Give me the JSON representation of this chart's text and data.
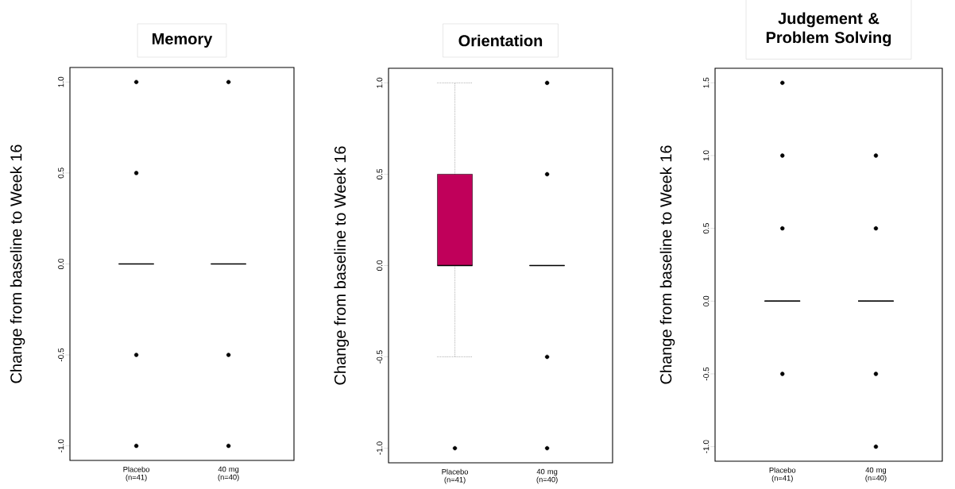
{
  "chart_data": [
    {
      "type": "box",
      "title": "Memory",
      "ylabel": "Change from baseline to Week 16",
      "categories": [
        "Placebo (n=41)",
        "40 mg (n=40)"
      ],
      "boxes": [
        {
          "low": 0,
          "q1": 0,
          "median": 0,
          "q3": 0,
          "high": 0,
          "outliers": [
            1.0,
            0.5,
            -0.5,
            -1.0
          ]
        },
        {
          "low": 0,
          "q1": 0,
          "median": 0,
          "q3": 0,
          "high": 0,
          "outliers": [
            1.0,
            -0.5,
            -1.0
          ]
        }
      ],
      "ylim": [
        -1.08,
        1.08
      ],
      "yticks": [
        {
          "value": -1,
          "label": "-1.0"
        },
        {
          "value": -0.5,
          "label": "-0.5"
        },
        {
          "value": 0,
          "label": "0.0"
        },
        {
          "value": 0.5,
          "label": "0.5"
        },
        {
          "value": 1,
          "label": "1.0"
        }
      ]
    },
    {
      "type": "box",
      "title": "Orientation",
      "ylabel": "Change from baseline to Week 16",
      "categories": [
        "Placebo (n=41)",
        "40 mg (n=40)"
      ],
      "boxes": [
        {
          "low": -0.5,
          "q1": 0,
          "median": 0,
          "q3": 0.5,
          "high": 1.0,
          "outliers": [
            -1.0
          ]
        },
        {
          "low": 0,
          "q1": 0,
          "median": 0,
          "q3": 0,
          "high": 0,
          "outliers": [
            1.0,
            0.5,
            -0.5,
            -1.0
          ]
        }
      ],
      "colors": [
        "#c0005a",
        null
      ],
      "ylim": [
        -1.08,
        1.08
      ],
      "yticks": [
        {
          "value": -1,
          "label": "-1.0"
        },
        {
          "value": -0.5,
          "label": "-0.5"
        },
        {
          "value": 0,
          "label": "0.0"
        },
        {
          "value": 0.5,
          "label": "0.5"
        },
        {
          "value": 1,
          "label": "1.0"
        }
      ]
    },
    {
      "type": "box",
      "title": "Judgement & Problem Solving",
      "ylabel": "Change from baseline to Week 16",
      "categories": [
        "Placebo (n=41)",
        "40 mg (n=40)"
      ],
      "boxes": [
        {
          "low": 0,
          "q1": 0,
          "median": 0,
          "q3": 0,
          "high": 0,
          "outliers": [
            1.5,
            1.0,
            0.5,
            -0.5
          ]
        },
        {
          "low": 0,
          "q1": 0,
          "median": 0,
          "q3": 0,
          "high": 0,
          "outliers": [
            1.0,
            0.5,
            -0.5,
            -1.0
          ]
        }
      ],
      "ylim": [
        -1.1,
        1.6
      ],
      "yticks": [
        {
          "value": -1,
          "label": "-1.0"
        },
        {
          "value": -0.5,
          "label": "-0.5"
        },
        {
          "value": 0,
          "label": "0.0"
        },
        {
          "value": 0.5,
          "label": "0.5"
        },
        {
          "value": 1,
          "label": "1.0"
        },
        {
          "value": 1.5,
          "label": "1.5"
        }
      ]
    }
  ]
}
